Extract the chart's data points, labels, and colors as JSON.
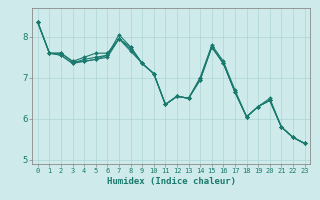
{
  "xlabel": "Humidex (Indice chaleur)",
  "background_color": "#ceeaea",
  "line_color": "#1a7a6e",
  "grid_color": "#aed4d4",
  "xlim": [
    -0.5,
    23.5
  ],
  "ylim": [
    4.9,
    8.7
  ],
  "yticks": [
    5,
    6,
    7,
    8
  ],
  "xticks": [
    0,
    1,
    2,
    3,
    4,
    5,
    6,
    7,
    8,
    9,
    10,
    11,
    12,
    13,
    14,
    15,
    16,
    17,
    18,
    19,
    20,
    21,
    22,
    23
  ],
  "series": [
    [
      8.35,
      7.6,
      7.55,
      7.35,
      7.4,
      7.45,
      7.5,
      7.95,
      7.7,
      7.35,
      7.1,
      6.35,
      6.55,
      6.5,
      6.95,
      7.75,
      7.35,
      6.65,
      6.05,
      6.3,
      6.45,
      5.8,
      5.55,
      5.4
    ],
    [
      8.35,
      7.6,
      7.6,
      7.4,
      7.4,
      7.45,
      7.55,
      8.05,
      7.75,
      7.35,
      7.1,
      6.35,
      6.55,
      6.5,
      7.0,
      7.8,
      7.4,
      6.7,
      6.05,
      6.3,
      6.5,
      5.8,
      5.55,
      5.4
    ],
    [
      8.35,
      7.6,
      7.6,
      7.4,
      7.5,
      7.6,
      7.6,
      7.95,
      7.75,
      7.35,
      7.1,
      6.35,
      6.55,
      6.5,
      6.95,
      7.75,
      7.35,
      6.65,
      6.05,
      6.3,
      6.45,
      5.8,
      5.55,
      5.4
    ],
    [
      8.35,
      7.6,
      7.55,
      7.35,
      7.45,
      7.5,
      7.55,
      7.95,
      7.65,
      7.35,
      7.1,
      6.35,
      6.55,
      6.5,
      7.0,
      7.75,
      7.35,
      6.65,
      6.05,
      6.3,
      6.45,
      5.8,
      5.55,
      5.4
    ]
  ]
}
